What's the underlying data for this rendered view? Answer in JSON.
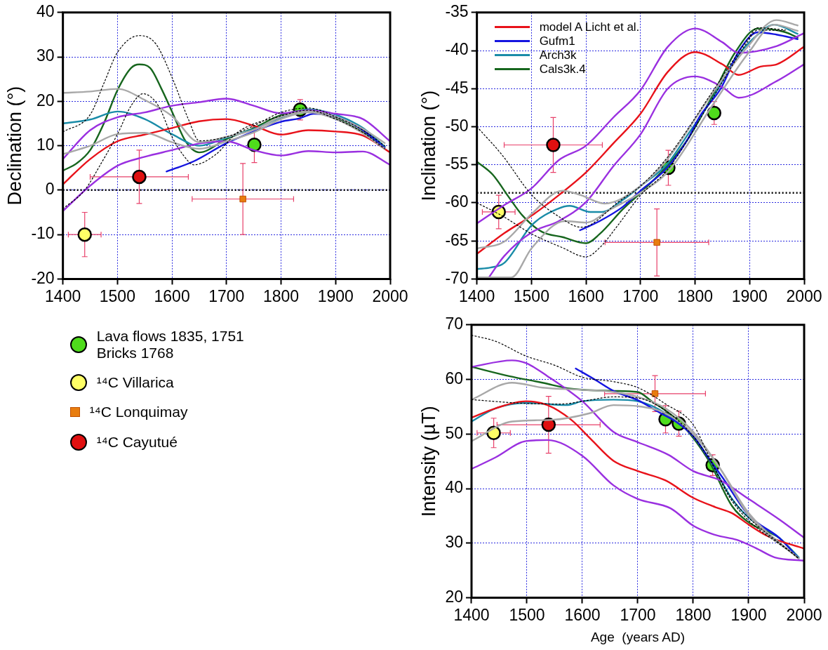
{
  "chart_data": [
    {
      "type": "line",
      "ylabel": "Declination (°)",
      "xlim": [
        1400,
        2000
      ],
      "ylim": [
        -20,
        40
      ],
      "xticks": [
        1400,
        1500,
        1600,
        1700,
        1800,
        1900,
        2000
      ],
      "yticks": [
        -20,
        -10,
        0,
        10,
        20,
        30,
        40
      ],
      "grid": true,
      "legend": "bottom",
      "ref_lines": [
        {
          "axis": "y",
          "value": 0,
          "color": "#000000",
          "line_style": "dotted"
        }
      ],
      "series": [
        {
          "type": "line",
          "color": "#000000",
          "line_style": "dotted",
          "x": [
            1400,
            1450,
            1475,
            1500,
            1540,
            1570,
            1600,
            1630,
            1650,
            1700,
            1750,
            1800,
            1850,
            1900,
            1950,
            1990
          ],
          "values": [
            13.1,
            17,
            24,
            31,
            34.8,
            33,
            25.4,
            16,
            11.1,
            12,
            14.5,
            17.5,
            18.5,
            16.5,
            13.5,
            10
          ]
        },
        {
          "type": "line",
          "color": "#000000",
          "line_style": "dotted",
          "x": [
            1400,
            1440,
            1470,
            1500,
            1525,
            1547,
            1575,
            1600,
            1620,
            1640,
            1680,
            1720,
            1800,
            1850,
            1900,
            1950,
            1990
          ],
          "values": [
            -4.2,
            0,
            6,
            12.6,
            19,
            21.7,
            19,
            12,
            8,
            5.7,
            8,
            13,
            16.7,
            18,
            16,
            13,
            9.3
          ]
        },
        {
          "type": "line",
          "color": "#a8a8a8",
          "x": [
            1400,
            1450,
            1500,
            1550,
            1600,
            1650,
            1700,
            1750,
            1800,
            1850,
            1900,
            1950,
            1990
          ],
          "values": [
            21.9,
            22.2,
            22.8,
            20.3,
            16.7,
            10.8,
            12,
            13.6,
            16.5,
            17.8,
            16.5,
            13.8,
            10.6
          ]
        },
        {
          "type": "line",
          "color": "#a8a8a8",
          "x": [
            1400,
            1450,
            1500,
            1550,
            1600,
            1650,
            1700,
            1750,
            1800,
            1850,
            1900,
            1950,
            1990
          ],
          "values": [
            8.1,
            10,
            12.6,
            12.9,
            10.8,
            9.3,
            11,
            13,
            16,
            17.5,
            16,
            12.8,
            9.3
          ]
        },
        {
          "type": "line",
          "color": "#9a30e0",
          "x": [
            1400,
            1450,
            1500,
            1550,
            1600,
            1650,
            1700,
            1750,
            1800,
            1850,
            1900,
            1950,
            2000
          ],
          "values": [
            7,
            13.5,
            16.4,
            17.5,
            19,
            19.8,
            20.6,
            19,
            17.3,
            18,
            17.2,
            16,
            11
          ]
        },
        {
          "type": "line",
          "color": "#9a30e0",
          "x": [
            1400,
            1450,
            1500,
            1550,
            1600,
            1650,
            1700,
            1750,
            1800,
            1850,
            1900,
            1950,
            2000
          ],
          "values": [
            -4.7,
            1,
            5.5,
            7.5,
            9,
            10.5,
            11,
            9,
            7.8,
            8.8,
            8.5,
            8.7,
            5.7
          ]
        },
        {
          "type": "line",
          "color": "#e8121a",
          "x": [
            1400,
            1450,
            1500,
            1550,
            1600,
            1650,
            1700,
            1750,
            1800,
            1850,
            1900,
            1950,
            2000
          ],
          "values": [
            1.3,
            7,
            11,
            12.5,
            14,
            15.5,
            16,
            14.5,
            12.5,
            13.5,
            13.2,
            12.3,
            8.5
          ]
        },
        {
          "type": "line",
          "color": "#1515e0",
          "x": [
            1590,
            1640,
            1700,
            1750,
            1800,
            1835,
            1860,
            1900,
            1950,
            1990
          ],
          "values": [
            4.2,
            6.5,
            10.6,
            13.2,
            15.4,
            16.2,
            17.2,
            16.5,
            13.5,
            9.5
          ]
        },
        {
          "type": "line",
          "color": "#1a8ca8",
          "x": [
            1400,
            1450,
            1500,
            1550,
            1600,
            1650,
            1700,
            1750,
            1800,
            1850,
            1900,
            1950,
            1990
          ],
          "values": [
            15,
            15.9,
            17.7,
            16,
            12.6,
            10,
            11.8,
            13.8,
            16.3,
            18.2,
            17,
            14,
            9.8
          ]
        },
        {
          "type": "line",
          "color": "#17661e",
          "x": [
            1400,
            1425,
            1450,
            1475,
            1500,
            1525,
            1540,
            1560,
            1580,
            1600,
            1625,
            1650,
            1700,
            1750,
            1800,
            1850,
            1900,
            1950,
            1990
          ],
          "values": [
            4.4,
            6,
            9,
            15,
            22.5,
            27.5,
            28.3,
            27.5,
            23,
            17.7,
            11,
            8.5,
            11.5,
            14,
            16.9,
            18,
            16.2,
            13,
            9.8
          ]
        },
        {
          "type": "scatter",
          "name": "Lava flows 1835, 1751\nBricks 1768",
          "color": "#4fdc1c",
          "marker": "circle",
          "x": [
            1751,
            1835
          ],
          "values": [
            10.2,
            18.1
          ],
          "errors": [
            4,
            2.3
          ]
        },
        {
          "type": "scatter",
          "name": "¹⁴C Villarica",
          "color": "#ffff66",
          "marker": "circle",
          "x": [
            1440
          ],
          "values": [
            -10
          ],
          "errors": [
            5
          ],
          "xerrors": [
            30
          ]
        },
        {
          "type": "scatter",
          "name": "¹⁴C Lonquimay",
          "color": "#e87d0f",
          "marker": "square",
          "x": [
            1730
          ],
          "values": [
            -2
          ],
          "errors": [
            8
          ],
          "xerrors": [
            93
          ]
        },
        {
          "type": "scatter",
          "name": "¹⁴C Cayutué",
          "color": "#e01010",
          "marker": "circle",
          "x": [
            1540
          ],
          "values": [
            3
          ],
          "errors": [
            6
          ],
          "xerrors": [
            90
          ]
        }
      ]
    },
    {
      "type": "line",
      "ylabel": "Inclination (°)",
      "xlim": [
        1400,
        2000
      ],
      "ylim": [
        -70,
        -35
      ],
      "xticks": [
        1400,
        1500,
        1600,
        1700,
        1800,
        1900,
        2000
      ],
      "yticks": [
        -70,
        -65,
        -60,
        -55,
        -50,
        -45,
        -40,
        -35
      ],
      "grid": true,
      "legend": "top left",
      "ref_lines": [
        {
          "axis": "y",
          "value": -58.7,
          "color": "#000000",
          "line_style": "dotted"
        }
      ],
      "series": [
        {
          "type": "line",
          "color": "#000000",
          "line_style": "dotted",
          "x": [
            1400,
            1446,
            1501,
            1548,
            1591,
            1608,
            1659,
            1700,
            1753,
            1830,
            1894,
            1915,
            1966
          ],
          "values": [
            -50,
            -53.7,
            -59,
            -61.7,
            -63.2,
            -62.9,
            -59.9,
            -57.8,
            -53.7,
            -45.6,
            -38.8,
            -37,
            -37.3
          ]
        },
        {
          "type": "line",
          "color": "#000000",
          "line_style": "dotted",
          "x": [
            1400,
            1446,
            1501,
            1557,
            1600,
            1625,
            1659,
            1700,
            1749,
            1830,
            1894,
            1915,
            1966
          ],
          "values": [
            -60,
            -61.7,
            -64.1,
            -65.9,
            -67.1,
            -65.9,
            -62.9,
            -59,
            -55.7,
            -46.5,
            -39.1,
            -37.3,
            -37.4
          ]
        },
        {
          "type": "line",
          "color": "#a8a8a8",
          "x": [
            1400,
            1450,
            1501,
            1557,
            1591,
            1634,
            1700,
            1749,
            1830,
            1894,
            1949,
            1988
          ],
          "values": [
            -66,
            -65.1,
            -61.4,
            -58.4,
            -59,
            -60.1,
            -57.8,
            -54.3,
            -45.8,
            -39.7,
            -36,
            -36.7
          ]
        },
        {
          "type": "line",
          "color": "#a8a8a8",
          "x": [
            1400,
            1463,
            1501,
            1561,
            1600,
            1646,
            1700,
            1753,
            1830,
            1898,
            1945,
            1988
          ],
          "values": [
            -69.8,
            -69.8,
            -65.9,
            -62.4,
            -62.6,
            -60.8,
            -58.7,
            -55.7,
            -47.4,
            -40.3,
            -36.6,
            -37.4
          ]
        },
        {
          "type": "line",
          "color": "#9a30e0",
          "x": [
            1400,
            1450,
            1500,
            1550,
            1600,
            1650,
            1700,
            1750,
            1800,
            1850,
            1880,
            1950,
            2000
          ],
          "values": [
            -62.7,
            -60.3,
            -58.1,
            -54.4,
            -52.5,
            -48.8,
            -45.2,
            -39.5,
            -37.1,
            -38.9,
            -40.3,
            -39.4,
            -37.7
          ]
        },
        {
          "type": "line",
          "color": "#9a30e0",
          "x": [
            1420,
            1450,
            1500,
            1550,
            1600,
            1650,
            1700,
            1750,
            1800,
            1850,
            1880,
            1950,
            2000
          ],
          "values": [
            -70,
            -67,
            -63.9,
            -62.4,
            -59.9,
            -55.2,
            -51,
            -45,
            -43.4,
            -44.8,
            -46.2,
            -44,
            -41.8
          ]
        },
        {
          "type": "line",
          "name": "model A Licht et al.",
          "color": "#e8121a",
          "x": [
            1400,
            1450,
            1500,
            1550,
            1600,
            1650,
            1700,
            1750,
            1800,
            1850,
            1880,
            1920,
            1950,
            2000
          ],
          "values": [
            -66.7,
            -64,
            -61.7,
            -59,
            -56,
            -52.2,
            -48.3,
            -42.8,
            -40.2,
            -41.8,
            -43.2,
            -42.1,
            -41.8,
            -39.5
          ]
        },
        {
          "type": "line",
          "name": "Gufm1",
          "color": "#1515e0",
          "x": [
            1589,
            1625,
            1668,
            1700,
            1749,
            1787,
            1809,
            1847,
            1881,
            1915,
            1949,
            1988
          ],
          "values": [
            -63.6,
            -62.4,
            -60.5,
            -58.4,
            -55.4,
            -51.6,
            -48.6,
            -45,
            -40,
            -37.6,
            -37.9,
            -38.5
          ]
        },
        {
          "type": "line",
          "name": "Arch3k",
          "color": "#1a8ca8",
          "x": [
            1400,
            1425,
            1450,
            1501,
            1548,
            1570,
            1608,
            1629,
            1668,
            1700,
            1749,
            1787,
            1830,
            1873,
            1915,
            1945,
            1988
          ],
          "values": [
            -68.7,
            -68.5,
            -67.9,
            -62.9,
            -60.8,
            -60.4,
            -61.2,
            -61.2,
            -59.6,
            -57.8,
            -54.9,
            -51,
            -46.5,
            -41.2,
            -37.9,
            -36.6,
            -37.8
          ]
        },
        {
          "type": "line",
          "name": "Cals3k.4",
          "color": "#17661e",
          "x": [
            1400,
            1429,
            1459,
            1484,
            1519,
            1557,
            1600,
            1625,
            1668,
            1700,
            1749,
            1787,
            1830,
            1873,
            1915,
            1966,
            1988
          ],
          "values": [
            -54.6,
            -56.3,
            -59.3,
            -61.7,
            -63.8,
            -64.5,
            -65.3,
            -64.1,
            -60.8,
            -58.7,
            -55.1,
            -51.6,
            -46.2,
            -40.3,
            -37.1,
            -37.6,
            -38.3
          ]
        },
        {
          "type": "scatter",
          "color": "#4fdc1c",
          "marker": "circle",
          "x": [
            1751,
            1835
          ],
          "values": [
            -55.4,
            -48.2
          ],
          "errors": [
            2.3,
            1.5
          ]
        },
        {
          "type": "scatter",
          "color": "#ffff66",
          "marker": "circle",
          "x": [
            1440
          ],
          "values": [
            -61.2
          ],
          "errors": [
            2.2
          ],
          "xerrors": [
            30
          ]
        },
        {
          "type": "scatter",
          "color": "#e87d0f",
          "marker": "square",
          "x": [
            1730
          ],
          "values": [
            -65.2
          ],
          "errors": [
            4.4
          ],
          "xerrors": [
            95
          ]
        },
        {
          "type": "scatter",
          "color": "#e01010",
          "marker": "circle",
          "x": [
            1540
          ],
          "values": [
            -52.4
          ],
          "errors": [
            3.6
          ],
          "xerrors": [
            90
          ]
        }
      ]
    },
    {
      "type": "line",
      "xlabel": "Age  (years AD)",
      "ylabel": "Intensity (µT)",
      "xlim": [
        1400,
        2000
      ],
      "ylim": [
        20,
        70
      ],
      "xticks": [
        1400,
        1500,
        1600,
        1700,
        1800,
        1900,
        2000
      ],
      "yticks": [
        20,
        30,
        40,
        50,
        60,
        70
      ],
      "grid": true,
      "series": [
        {
          "type": "line",
          "color": "#000000",
          "line_style": "dotted",
          "x": [
            1400,
            1443,
            1498,
            1550,
            1600,
            1656,
            1700,
            1750,
            1800,
            1827,
            1870,
            1990
          ],
          "values": [
            68.1,
            67,
            64.3,
            62.6,
            60.4,
            59.6,
            58.5,
            55.5,
            51.7,
            46.2,
            37.7,
            27.2
          ]
        },
        {
          "type": "line",
          "color": "#000000",
          "line_style": "dotted",
          "x": [
            1400,
            1498,
            1562,
            1600,
            1656,
            1700,
            1750,
            1800,
            1827,
            1870,
            1990
          ],
          "values": [
            56.3,
            55.6,
            55.5,
            56,
            56.8,
            56.6,
            54.3,
            49.6,
            45.7,
            38.1,
            27.2
          ]
        },
        {
          "type": "line",
          "color": "#a8a8a8",
          "x": [
            1400,
            1473,
            1528,
            1600,
            1656,
            1700,
            1750,
            1800,
            1849,
            1900,
            1990
          ],
          "values": [
            56.3,
            59.4,
            58.5,
            58.1,
            57.7,
            56.8,
            54.7,
            50.4,
            43.6,
            35.1,
            27.2
          ]
        },
        {
          "type": "line",
          "color": "#a8a8a8",
          "x": [
            1400,
            1473,
            1545,
            1613,
            1656,
            1700,
            1750,
            1800,
            1849,
            1900,
            1990
          ],
          "values": [
            48.7,
            52.3,
            52.6,
            53.8,
            55.3,
            55.1,
            53.8,
            50,
            43.6,
            35.5,
            27.2
          ]
        },
        {
          "type": "line",
          "color": "#9a30e0",
          "x": [
            1400,
            1473,
            1498,
            1537,
            1600,
            1656,
            1700,
            1755,
            1800,
            1849,
            1900,
            1956,
            2000
          ],
          "values": [
            62.3,
            63.5,
            63,
            60.6,
            56,
            50.4,
            48.5,
            46.2,
            43.2,
            41.5,
            38.1,
            34.3,
            31
          ]
        },
        {
          "type": "line",
          "color": "#9a30e0",
          "x": [
            1400,
            1443,
            1498,
            1537,
            1600,
            1656,
            1700,
            1759,
            1800,
            1840,
            1879,
            1913,
            1947,
            2000
          ],
          "values": [
            43.6,
            45.7,
            48.7,
            48.9,
            46,
            40.6,
            38.1,
            36.4,
            33.2,
            31.5,
            30.6,
            29.1,
            27.4,
            26.8
          ]
        },
        {
          "type": "line",
          "color": "#e8121a",
          "x": [
            1400,
            1443,
            1498,
            1537,
            1580,
            1615,
            1656,
            1700,
            1750,
            1800,
            1840,
            1870,
            1900,
            1934,
            2000
          ],
          "values": [
            53,
            54.7,
            56,
            55.3,
            52.6,
            49.1,
            45.1,
            43.2,
            41.5,
            38.3,
            36.6,
            35.5,
            33.4,
            31.3,
            29
          ]
        },
        {
          "type": "line",
          "color": "#1515e0",
          "x": [
            1588,
            1622,
            1656,
            1700,
            1738,
            1768,
            1800,
            1827,
            1853,
            1900,
            1956,
            1990
          ],
          "values": [
            62,
            60,
            57.9,
            56.2,
            54,
            52.3,
            49.6,
            45.7,
            42,
            35.1,
            30.9,
            27.2
          ]
        },
        {
          "type": "line",
          "color": "#1a8ca8",
          "x": [
            1400,
            1443,
            1498,
            1571,
            1600,
            1656,
            1700,
            1750,
            1800,
            1827,
            1870,
            1900,
            1956,
            1990
          ],
          "values": [
            52.3,
            54.7,
            55.7,
            55.3,
            56,
            56.3,
            56,
            53.8,
            49.6,
            45.7,
            38.1,
            34.7,
            30.9,
            27.4
          ]
        },
        {
          "type": "line",
          "color": "#17661e",
          "x": [
            1400,
            1468,
            1528,
            1579,
            1656,
            1700,
            1725,
            1750,
            1780,
            1827,
            1870,
            1900,
            1956,
            1990
          ],
          "values": [
            62.3,
            60.6,
            59.4,
            58.3,
            57.9,
            57.7,
            56,
            54.3,
            51.7,
            45.3,
            36.8,
            33.8,
            30.9,
            27.4
          ]
        },
        {
          "type": "scatter",
          "color": "#4fdc1c",
          "marker": "circle",
          "x": [
            1750,
            1774,
            1835
          ],
          "values": [
            52.7,
            51.9,
            44.3
          ],
          "errors": [
            2.5,
            2.3,
            1.9
          ]
        },
        {
          "type": "scatter",
          "color": "#ffff66",
          "marker": "circle",
          "x": [
            1440
          ],
          "values": [
            50.2
          ],
          "errors": [
            2.7
          ],
          "xerrors": [
            30
          ]
        },
        {
          "type": "scatter",
          "color": "#e87d0f",
          "marker": "square",
          "x": [
            1731
          ],
          "values": [
            57.4
          ],
          "errors": [
            3.3
          ],
          "xerrors": [
            91
          ]
        },
        {
          "type": "scatter",
          "color": "#e01010",
          "marker": "circle",
          "x": [
            1539
          ],
          "values": [
            51.7
          ],
          "errors": [
            5.2
          ],
          "xerrors": [
            93
          ]
        }
      ]
    }
  ]
}
